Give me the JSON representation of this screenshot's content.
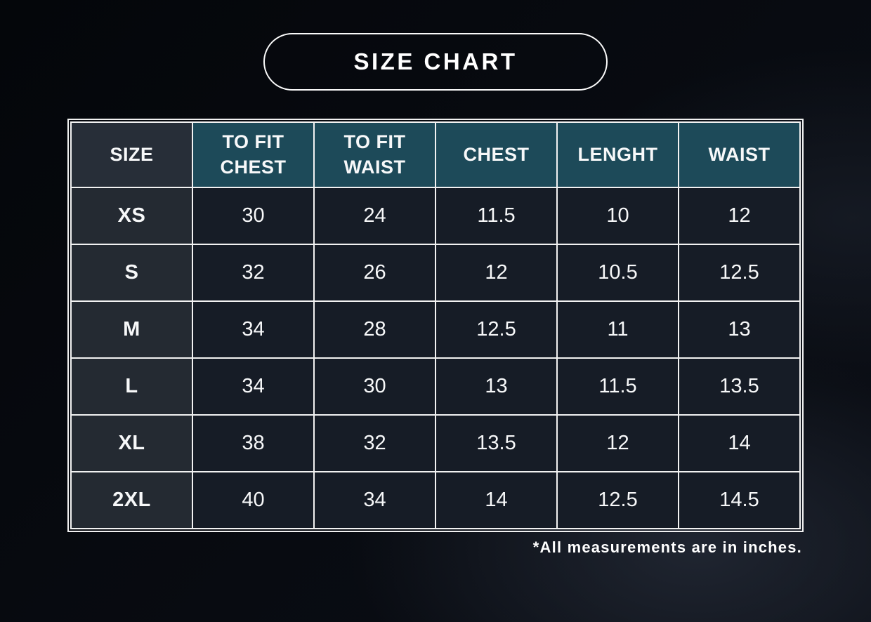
{
  "page": {
    "title_badge": "SIZE CHART",
    "footnote": "*All measurements are in inches."
  },
  "size_chart": {
    "columns": [
      "SIZE",
      "TO FIT\nCHEST",
      "TO FIT\nWAIST",
      "CHEST",
      "LENGHT",
      "WAIST"
    ],
    "rows": [
      {
        "size": "XS",
        "values": [
          "30",
          "24",
          "11.5",
          "10",
          "12"
        ]
      },
      {
        "size": "S",
        "values": [
          "32",
          "26",
          "12",
          "10.5",
          "12.5"
        ]
      },
      {
        "size": "M",
        "values": [
          "34",
          "28",
          "12.5",
          "11",
          "13"
        ]
      },
      {
        "size": "L",
        "values": [
          "34",
          "30",
          "13",
          "11.5",
          "13.5"
        ]
      },
      {
        "size": "XL",
        "values": [
          "38",
          "32",
          "13.5",
          "12",
          "14"
        ]
      },
      {
        "size": "2XL",
        "values": [
          "40",
          "34",
          "14",
          "12.5",
          "14.5"
        ]
      }
    ]
  },
  "chart_data": {
    "type": "table",
    "title": "SIZE CHART",
    "columns": [
      "SIZE",
      "TO FIT CHEST",
      "TO FIT WAIST",
      "CHEST",
      "LENGHT",
      "WAIST"
    ],
    "rows": [
      [
        "XS",
        30,
        24,
        11.5,
        10,
        12
      ],
      [
        "S",
        32,
        26,
        12,
        10.5,
        12.5
      ],
      [
        "M",
        34,
        28,
        12.5,
        11,
        13
      ],
      [
        "L",
        34,
        30,
        13,
        11.5,
        13.5
      ],
      [
        "XL",
        38,
        32,
        13.5,
        12,
        14
      ],
      [
        "2XL",
        40,
        34,
        14,
        12.5,
        14.5
      ]
    ],
    "footnote": "*All measurements are in inches.",
    "units": "inches"
  },
  "colors": {
    "header_teal": "#1d4a59",
    "header_size_bg": "#272e38",
    "size_cell_bg": "#242a32",
    "data_cell_bg": "#161c26",
    "border": "#f2f2f2",
    "text": "#f7f8f9",
    "background_dark": "#04060a"
  }
}
